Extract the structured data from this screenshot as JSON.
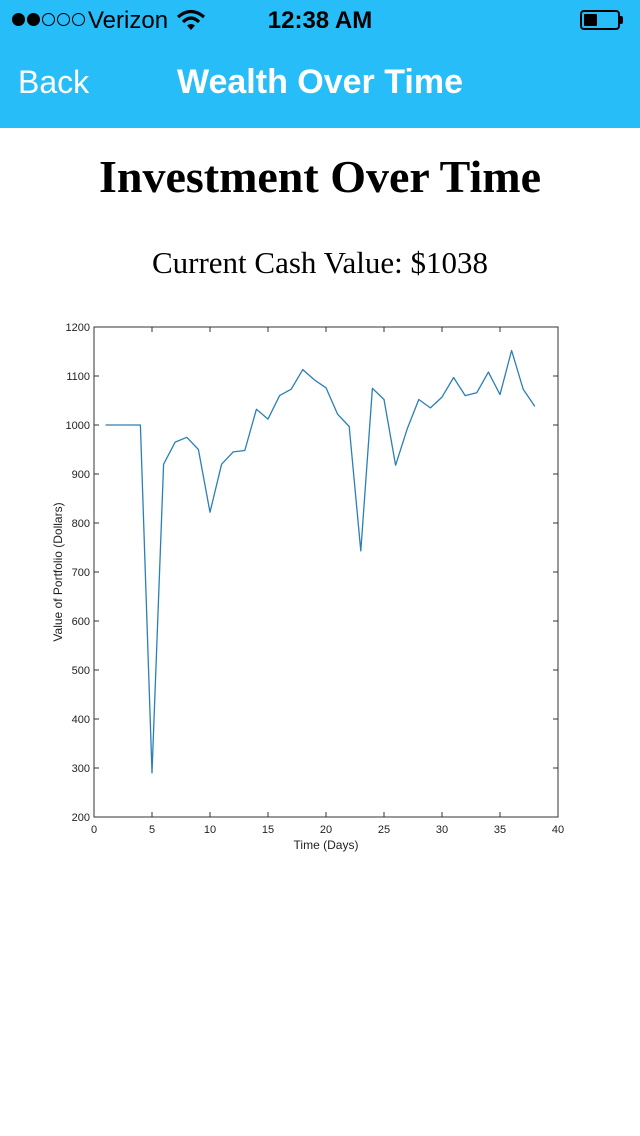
{
  "status_bar": {
    "carrier": "Verizon",
    "time": "12:38 AM",
    "signal_bars_filled": 2,
    "signal_bars_total": 5,
    "battery_level": 0.35
  },
  "nav": {
    "back_label": "Back",
    "title": "Wealth Over Time",
    "bar_color": "#27bdf8"
  },
  "content": {
    "title": "Investment Over Time",
    "cash_value": "Current Cash Value: $1038"
  },
  "chart_data": {
    "type": "line",
    "xlabel": "Time (Days)",
    "ylabel": "Value of Portfolio (Dollars)",
    "xlim": [
      0,
      40
    ],
    "ylim": [
      200,
      1200
    ],
    "xticks": [
      0,
      5,
      10,
      15,
      20,
      25,
      30,
      35,
      40
    ],
    "yticks": [
      200,
      300,
      400,
      500,
      600,
      700,
      800,
      900,
      1000,
      1100,
      1200
    ],
    "grid": false,
    "series": [
      {
        "color": "#2a7fb8",
        "x": [
          1,
          2,
          3,
          4,
          5,
          6,
          7,
          8,
          9,
          10,
          11,
          12,
          13,
          14,
          15,
          16,
          17,
          18,
          19,
          20,
          21,
          22,
          23,
          24,
          25,
          26,
          27,
          28,
          29,
          30,
          31,
          32,
          33,
          34,
          35,
          36,
          37,
          38
        ],
        "values": [
          1000,
          1000,
          1000,
          1000,
          290,
          920,
          965,
          975,
          950,
          822,
          920,
          945,
          948,
          1032,
          1012,
          1060,
          1073,
          1113,
          1092,
          1076,
          1022,
          997,
          743,
          1075,
          1052,
          918,
          992,
          1052,
          1035,
          1057,
          1097,
          1060,
          1066,
          1108,
          1062,
          1152,
          1073,
          1038
        ]
      }
    ]
  }
}
